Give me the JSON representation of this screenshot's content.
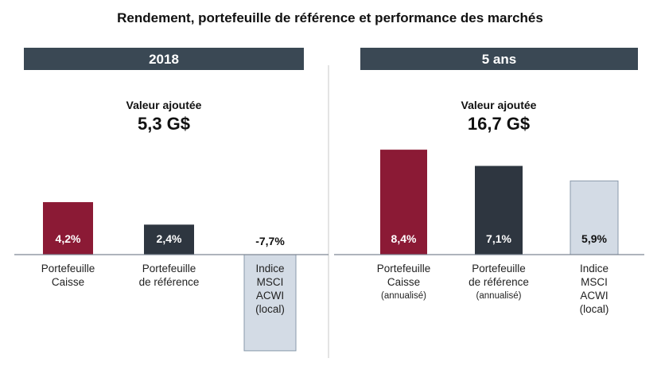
{
  "chart_data": [
    {
      "type": "bar",
      "title": "Rendement, portefeuille de référence et performance des marchés",
      "panel_label": "2018",
      "value_added_label": "Valeur ajoutée",
      "value_added": "5,3 G$",
      "categories": [
        [
          "Portefeuille",
          "Caisse"
        ],
        [
          "Portefeuille",
          "de référence"
        ],
        [
          "Indice",
          "MSCI",
          "ACWI",
          "(local)"
        ]
      ],
      "values": [
        4.2,
        2.4,
        -7.7
      ],
      "value_labels": [
        "4,2%",
        "2,4%",
        "-7,7%"
      ],
      "unit": "%"
    },
    {
      "type": "bar",
      "panel_label": "5 ans",
      "value_added_label": "Valeur ajoutée",
      "value_added": "16,7 G$",
      "categories": [
        [
          "Portefeuille",
          "Caisse",
          "(annualisé)"
        ],
        [
          "Portefeuille",
          "de référence",
          "(annualisé)"
        ],
        [
          "Indice",
          "MSCI",
          "ACWI",
          "(local)"
        ]
      ],
      "values": [
        8.4,
        7.1,
        5.9
      ],
      "value_labels": [
        "8,4%",
        "7,1%",
        "5,9%"
      ],
      "unit": "%"
    }
  ],
  "colors": {
    "caisse": "#8b1a35",
    "reference": "#2e3640",
    "index": "#d3dbe5",
    "index_border": "#8a9aab",
    "header": "#3a4854"
  }
}
